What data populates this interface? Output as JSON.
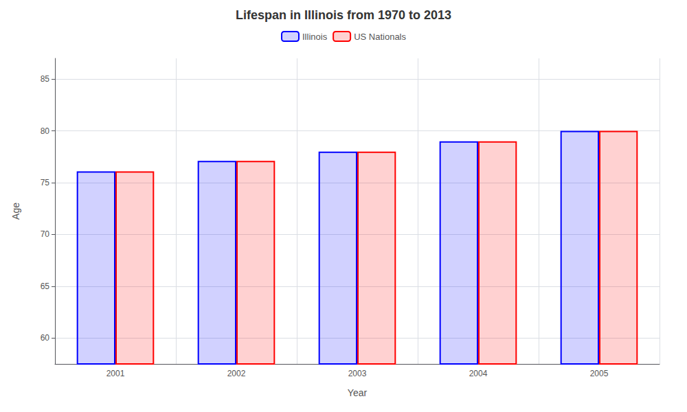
{
  "chart_data": {
    "type": "bar",
    "title": "Lifespan in Illinois from 1970 to 2013",
    "xlabel": "Year",
    "ylabel": "Age",
    "categories": [
      "2001",
      "2002",
      "2003",
      "2004",
      "2005"
    ],
    "series": [
      {
        "name": "Illinois",
        "color": "#0000ff",
        "values": [
          76.1,
          77.1,
          78.0,
          79.0,
          80.0
        ]
      },
      {
        "name": "US Nationals",
        "color": "#ff0000",
        "values": [
          76.1,
          77.1,
          78.0,
          79.0,
          80.0
        ]
      }
    ],
    "ylim": [
      57.5,
      87
    ],
    "yticks": [
      60,
      65,
      70,
      75,
      80,
      85
    ],
    "grid": true,
    "legend": "top"
  }
}
